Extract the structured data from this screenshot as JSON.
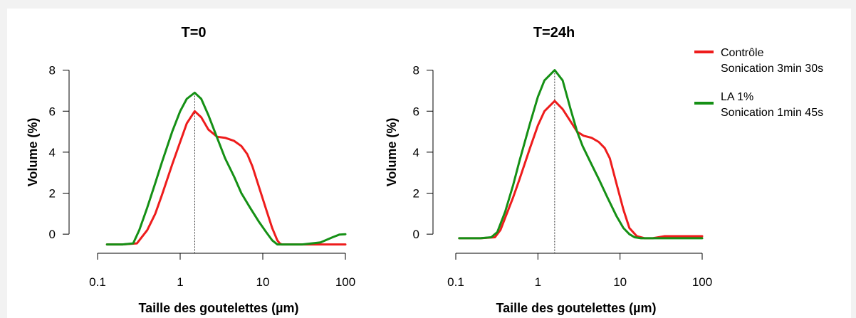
{
  "colors": {
    "background": "#f2f2f2",
    "panel": "#ffffff",
    "control": "#ee1c1c",
    "la": "#159015"
  },
  "legend": {
    "placement": "top-right",
    "items": [
      {
        "line1": "Contrôle",
        "line2": "Sonication 3min 30s",
        "color": "#ee1c1c"
      },
      {
        "line1": "LA 1%",
        "line2": "Sonication 1min 45s",
        "color": "#159015"
      }
    ]
  },
  "chart_data": [
    {
      "type": "line",
      "title": "T=0",
      "xlabel": "Taille des goutelettes (µm)",
      "ylabel": "Volume (%)",
      "xscale": "log",
      "xlim": [
        0.1,
        100
      ],
      "ylim": [
        -0.55,
        8.3
      ],
      "xticks": [
        "0.1",
        "1",
        "10",
        "100"
      ],
      "yticks": [
        "0",
        "2",
        "4",
        "6",
        "8"
      ],
      "reference_line_x": 1.5,
      "series": [
        {
          "name": "Contrôle",
          "color": "#ee1c1c",
          "x": [
            0.13,
            0.2,
            0.3,
            0.4,
            0.5,
            0.6,
            0.8,
            1.0,
            1.2,
            1.5,
            1.8,
            2.2,
            2.8,
            3.5,
            4.5,
            5.5,
            6.5,
            7.5,
            9,
            11,
            13,
            15,
            16,
            17,
            20,
            30,
            50,
            100
          ],
          "values": [
            -0.5,
            -0.5,
            -0.45,
            0.2,
            1.0,
            1.9,
            3.4,
            4.5,
            5.4,
            6.0,
            5.7,
            5.1,
            4.75,
            4.7,
            4.55,
            4.3,
            3.9,
            3.3,
            2.3,
            1.2,
            0.3,
            -0.3,
            -0.45,
            -0.5,
            -0.5,
            -0.5,
            -0.5,
            -0.5
          ]
        },
        {
          "name": "LA 1%",
          "color": "#159015",
          "x": [
            0.13,
            0.2,
            0.27,
            0.32,
            0.4,
            0.5,
            0.6,
            0.8,
            1.0,
            1.2,
            1.5,
            1.8,
            2.2,
            2.8,
            3.5,
            4.5,
            5.5,
            7,
            9,
            11,
            13,
            15,
            20,
            30,
            50,
            70,
            85,
            100
          ],
          "values": [
            -0.5,
            -0.5,
            -0.45,
            0.2,
            1.3,
            2.5,
            3.5,
            5.0,
            6.0,
            6.6,
            6.9,
            6.6,
            5.8,
            4.7,
            3.7,
            2.8,
            2.0,
            1.3,
            0.6,
            0.1,
            -0.3,
            -0.5,
            -0.5,
            -0.5,
            -0.4,
            -0.15,
            -0.02,
            0.0
          ]
        }
      ]
    },
    {
      "type": "line",
      "title": "T=24h",
      "xlabel": "Taille des goutelettes (µm)",
      "ylabel": "Volume (%)",
      "xscale": "log",
      "xlim": [
        0.1,
        100
      ],
      "ylim": [
        -0.55,
        8.3
      ],
      "xticks": [
        "0.1",
        "1",
        "10",
        "100"
      ],
      "yticks": [
        "0",
        "2",
        "4",
        "6",
        "8"
      ],
      "reference_line_x": 1.6,
      "series": [
        {
          "name": "Contrôle",
          "color": "#ee1c1c",
          "x": [
            0.11,
            0.2,
            0.3,
            0.35,
            0.4,
            0.5,
            0.6,
            0.8,
            1.0,
            1.2,
            1.6,
            2.0,
            2.5,
            3.0,
            3.6,
            4.5,
            5.5,
            6.5,
            7.5,
            9,
            11,
            13,
            16,
            20,
            25,
            35,
            60,
            100
          ],
          "values": [
            -0.2,
            -0.2,
            -0.15,
            0.2,
            0.8,
            1.8,
            2.7,
            4.2,
            5.3,
            6.0,
            6.5,
            6.1,
            5.5,
            5.0,
            4.8,
            4.7,
            4.5,
            4.2,
            3.7,
            2.5,
            1.2,
            0.3,
            -0.1,
            -0.2,
            -0.2,
            -0.1,
            -0.1,
            -0.1
          ]
        },
        {
          "name": "LA 1%",
          "color": "#159015",
          "x": [
            0.11,
            0.2,
            0.27,
            0.32,
            0.4,
            0.5,
            0.6,
            0.8,
            1.0,
            1.2,
            1.6,
            2.0,
            2.5,
            3.0,
            3.5,
            4.5,
            5.5,
            7,
            9,
            11,
            13,
            15,
            18,
            25,
            40,
            100
          ],
          "values": [
            -0.2,
            -0.2,
            -0.15,
            0.1,
            1.1,
            2.4,
            3.6,
            5.4,
            6.7,
            7.5,
            8.0,
            7.5,
            6.1,
            5.0,
            4.3,
            3.4,
            2.7,
            1.8,
            0.9,
            0.3,
            0.0,
            -0.15,
            -0.2,
            -0.2,
            -0.2,
            -0.2
          ]
        }
      ]
    }
  ]
}
